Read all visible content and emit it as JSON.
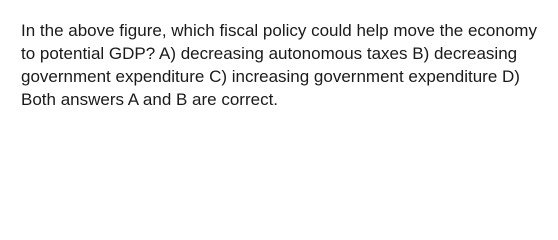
{
  "question": {
    "text": "In the above figure, which fiscal policy could help move the economy to potential GDP? A) decreasing autonomous taxes B) decreasing government expenditure C) increasing government expenditure D) Both answers A and B are correct."
  }
}
